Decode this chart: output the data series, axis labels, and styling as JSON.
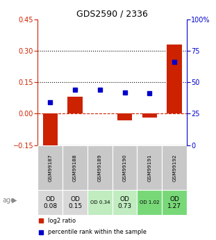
{
  "title": "GDS2590 / 2336",
  "samples": [
    "GSM99187",
    "GSM99188",
    "GSM99189",
    "GSM99190",
    "GSM99191",
    "GSM99192"
  ],
  "log2_ratio": [
    -0.18,
    0.08,
    0.0,
    -0.03,
    -0.02,
    0.33
  ],
  "percentile_rank": [
    34,
    44,
    44,
    42,
    41,
    66
  ],
  "ylim_left": [
    -0.15,
    0.45
  ],
  "ylim_right": [
    0,
    100
  ],
  "yticks_left": [
    -0.15,
    0.0,
    0.15,
    0.3,
    0.45
  ],
  "yticks_right": [
    0,
    25,
    50,
    75,
    100
  ],
  "ytick_labels_right": [
    "0",
    "25",
    "50",
    "75",
    "100%"
  ],
  "bar_color": "#cc2200",
  "dot_color": "#0000cc",
  "age_row": [
    "OD\n0.08",
    "OD\n0.15",
    "OD 0.34",
    "OD\n0.73",
    "OD 1.02",
    "OD\n1.27"
  ],
  "age_bg": [
    "#d8d8d8",
    "#d8d8d8",
    "#c0ecc0",
    "#c0ecc0",
    "#78d878",
    "#78d878"
  ],
  "age_fontsize_large": [
    true,
    true,
    false,
    true,
    false,
    true
  ],
  "gsm_bg": "#c8c8c8",
  "label_log2": "log2 ratio",
  "label_pct": "percentile rank within the sample"
}
